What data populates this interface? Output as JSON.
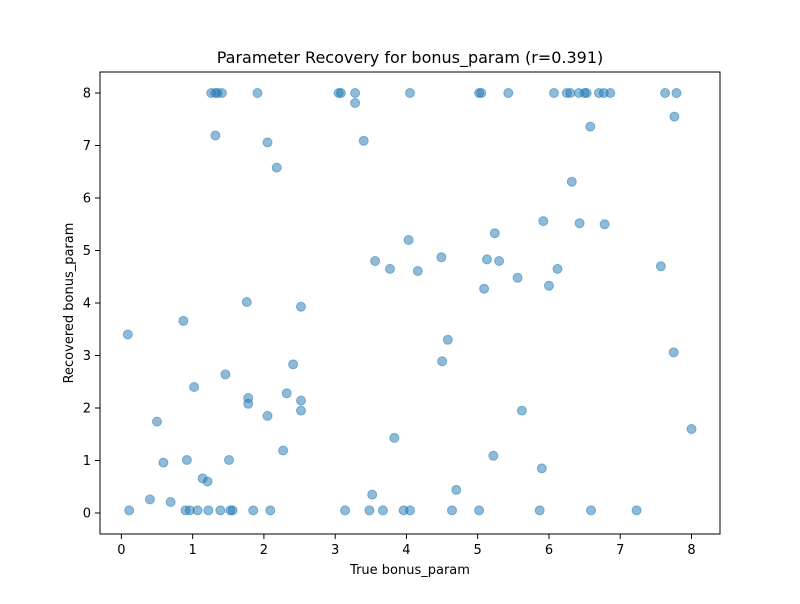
{
  "chart_data": {
    "type": "scatter",
    "title": "Parameter Recovery for bonus_param (r=0.391)",
    "xlabel": "True bonus_param",
    "ylabel": "Recovered bonus_param",
    "xlim": [
      -0.3,
      8.4
    ],
    "ylim": [
      -0.4,
      8.4
    ],
    "xticks": [
      0,
      1,
      2,
      3,
      4,
      5,
      6,
      7,
      8
    ],
    "yticks": [
      0,
      1,
      2,
      3,
      4,
      5,
      6,
      7,
      8
    ],
    "grid": false,
    "color": "#1f77b4",
    "alpha": 0.5,
    "points": [
      [
        1.26,
        8.0
      ],
      [
        1.32,
        8.0
      ],
      [
        1.35,
        8.0
      ],
      [
        1.41,
        8.0
      ],
      [
        1.91,
        8.0
      ],
      [
        3.05,
        8.0
      ],
      [
        3.08,
        8.0
      ],
      [
        3.28,
        8.0
      ],
      [
        4.05,
        8.0
      ],
      [
        5.02,
        8.0
      ],
      [
        5.05,
        8.0
      ],
      [
        5.43,
        8.0
      ],
      [
        6.07,
        8.0
      ],
      [
        6.25,
        8.0
      ],
      [
        6.3,
        8.0
      ],
      [
        6.42,
        8.0
      ],
      [
        6.5,
        8.0
      ],
      [
        6.53,
        8.0
      ],
      [
        6.7,
        8.0
      ],
      [
        6.77,
        8.0
      ],
      [
        6.86,
        8.0
      ],
      [
        7.63,
        8.0
      ],
      [
        7.79,
        8.0
      ],
      [
        3.28,
        7.81
      ],
      [
        7.76,
        7.55
      ],
      [
        6.58,
        7.36
      ],
      [
        1.32,
        7.19
      ],
      [
        3.4,
        7.09
      ],
      [
        2.05,
        7.06
      ],
      [
        2.18,
        6.58
      ],
      [
        6.32,
        6.31
      ],
      [
        5.92,
        5.56
      ],
      [
        6.43,
        5.52
      ],
      [
        6.78,
        5.5
      ],
      [
        5.24,
        5.33
      ],
      [
        4.03,
        5.2
      ],
      [
        4.49,
        4.87
      ],
      [
        5.13,
        4.83
      ],
      [
        3.56,
        4.8
      ],
      [
        5.3,
        4.8
      ],
      [
        7.57,
        4.7
      ],
      [
        3.77,
        4.65
      ],
      [
        6.12,
        4.65
      ],
      [
        4.16,
        4.61
      ],
      [
        5.56,
        4.48
      ],
      [
        6.0,
        4.33
      ],
      [
        5.09,
        4.27
      ],
      [
        1.76,
        4.02
      ],
      [
        2.52,
        3.93
      ],
      [
        0.87,
        3.66
      ],
      [
        0.09,
        3.4
      ],
      [
        4.58,
        3.3
      ],
      [
        7.75,
        3.06
      ],
      [
        4.5,
        2.89
      ],
      [
        2.41,
        2.83
      ],
      [
        1.46,
        2.64
      ],
      [
        1.02,
        2.4
      ],
      [
        2.32,
        2.28
      ],
      [
        1.78,
        2.19
      ],
      [
        2.52,
        2.14
      ],
      [
        1.78,
        2.08
      ],
      [
        2.52,
        1.95
      ],
      [
        5.62,
        1.95
      ],
      [
        2.05,
        1.85
      ],
      [
        0.5,
        1.74
      ],
      [
        8.0,
        1.6
      ],
      [
        3.83,
        1.43
      ],
      [
        2.27,
        1.19
      ],
      [
        5.22,
        1.09
      ],
      [
        0.92,
        1.01
      ],
      [
        1.51,
        1.01
      ],
      [
        0.59,
        0.96
      ],
      [
        5.9,
        0.85
      ],
      [
        1.14,
        0.66
      ],
      [
        1.21,
        0.6
      ],
      [
        4.7,
        0.44
      ],
      [
        3.52,
        0.35
      ],
      [
        0.4,
        0.26
      ],
      [
        0.69,
        0.21
      ],
      [
        0.11,
        0.05
      ],
      [
        0.9,
        0.05
      ],
      [
        0.96,
        0.05
      ],
      [
        1.07,
        0.05
      ],
      [
        1.22,
        0.05
      ],
      [
        1.39,
        0.05
      ],
      [
        1.53,
        0.05
      ],
      [
        1.56,
        0.05
      ],
      [
        1.85,
        0.05
      ],
      [
        2.09,
        0.05
      ],
      [
        3.14,
        0.05
      ],
      [
        3.48,
        0.05
      ],
      [
        3.67,
        0.05
      ],
      [
        3.96,
        0.05
      ],
      [
        4.05,
        0.05
      ],
      [
        4.64,
        0.05
      ],
      [
        5.02,
        0.05
      ],
      [
        5.87,
        0.05
      ],
      [
        6.59,
        0.05
      ],
      [
        7.23,
        0.05
      ]
    ]
  }
}
